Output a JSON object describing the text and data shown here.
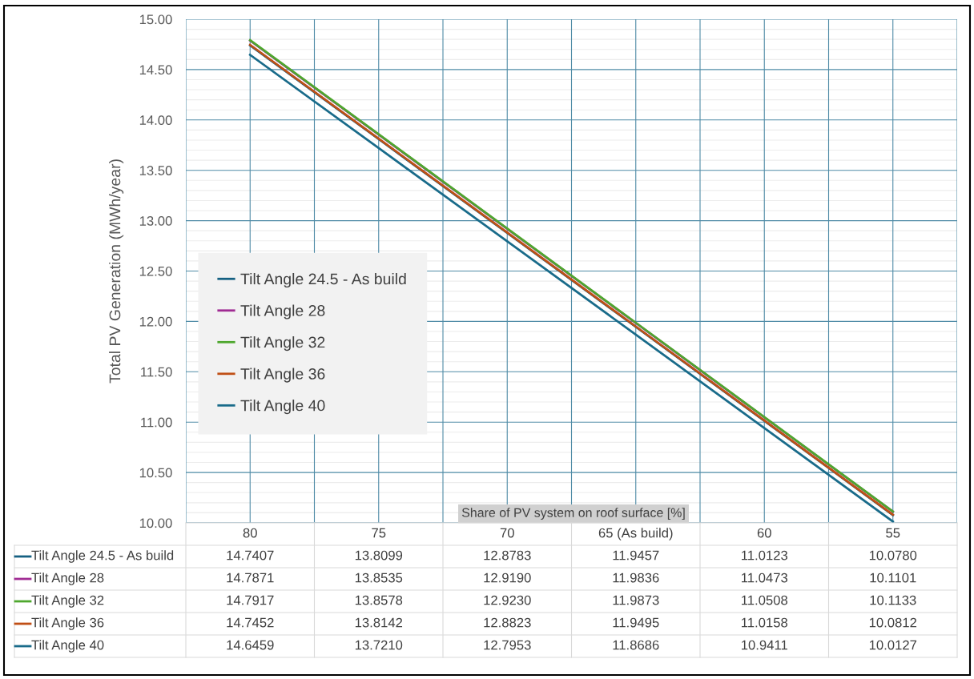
{
  "chart_data": {
    "type": "line",
    "ylabel": "Total PV Generation (MWh/year)",
    "xlabel": "Share of PV system on roof surface [%]",
    "categories": [
      "80",
      "75",
      "70",
      "65 (As build)",
      "60",
      "55"
    ],
    "series": [
      {
        "name": "Tilt Angle 24.5 - As build",
        "color": "#156082",
        "values": [
          14.7407,
          13.8099,
          12.8783,
          11.9457,
          11.0123,
          10.078
        ],
        "value_labels": [
          "14.7407",
          "13.8099",
          "12.8783",
          "11.9457",
          "11.0123",
          "10.0780"
        ]
      },
      {
        "name": "Tilt Angle 28",
        "color": "#a02b93",
        "values": [
          14.7871,
          13.8535,
          12.919,
          11.9836,
          11.0473,
          10.1101
        ],
        "value_labels": [
          "14.7871",
          "13.8535",
          "12.9190",
          "11.9836",
          "11.0473",
          "10.1101"
        ]
      },
      {
        "name": "Tilt Angle 32",
        "color": "#4ea72e",
        "values": [
          14.7917,
          13.8578,
          12.923,
          11.9873,
          11.0508,
          10.1133
        ],
        "value_labels": [
          "14.7917",
          "13.8578",
          "12.9230",
          "11.9873",
          "11.0508",
          "10.1133"
        ]
      },
      {
        "name": "Tilt Angle 36",
        "color": "#c04f15",
        "values": [
          14.7452,
          13.8142,
          12.8823,
          11.9495,
          11.0158,
          10.0812
        ],
        "value_labels": [
          "14.7452",
          "13.8142",
          "12.8823",
          "11.9495",
          "11.0158",
          "10.0812"
        ]
      },
      {
        "name": "Tilt Angle 40",
        "color": "#196b8a",
        "values": [
          14.6459,
          13.721,
          12.7953,
          11.8686,
          10.9411,
          10.0127
        ],
        "value_labels": [
          "14.6459",
          "13.7210",
          "12.7953",
          "11.8686",
          "10.9411",
          "10.0127"
        ]
      }
    ],
    "ylim": [
      10,
      15
    ],
    "yticks": [
      {
        "value": 10,
        "label": "10.00"
      },
      {
        "value": 10.5,
        "label": "10.50"
      },
      {
        "value": 11,
        "label": "11.00"
      },
      {
        "value": 11.5,
        "label": "11.50"
      },
      {
        "value": 12,
        "label": "12.00"
      },
      {
        "value": 12.5,
        "label": "12.50"
      },
      {
        "value": 13,
        "label": "13.00"
      },
      {
        "value": 13.5,
        "label": "13.50"
      },
      {
        "value": 14,
        "label": "14.00"
      },
      {
        "value": 14.5,
        "label": "14.50"
      },
      {
        "value": 15,
        "label": "15.00"
      }
    ],
    "grid": true,
    "legend": "left",
    "marker": "none",
    "line_style": "solid"
  }
}
